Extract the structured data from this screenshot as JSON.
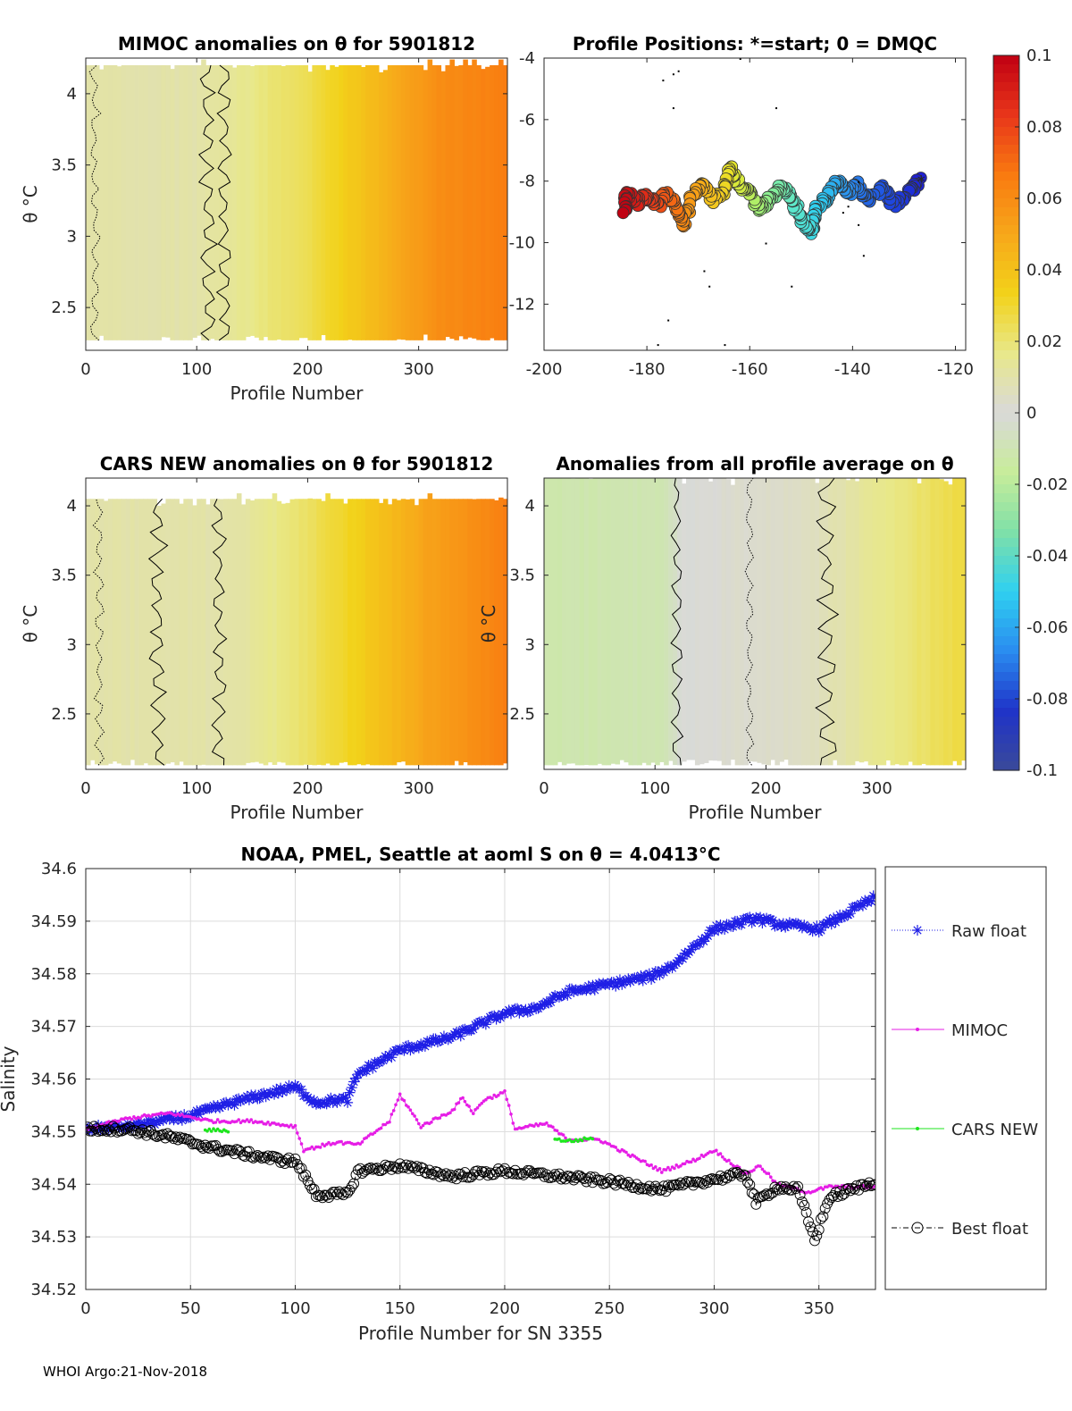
{
  "footer": "WHOI Argo:21-Nov-2018",
  "colors": {
    "raw_float": "#1f1fe6",
    "mimoc": "#e61ee6",
    "cars_new": "#1ee61e",
    "best_float": "#000000",
    "colormap": [
      "#3a4a9a",
      "#1f33c8",
      "#2a8cf0",
      "#2fd0f0",
      "#7fe0a8",
      "#c8ec9a",
      "#d9d9d9",
      "#e8e88a",
      "#f2d21a",
      "#f7a71a",
      "#f97a10",
      "#e8351a",
      "#c00012"
    ]
  },
  "chart_data": [
    {
      "id": "mimoc_anomalies",
      "type": "heatmap",
      "title": "MIMOC anomalies on θ  for 5901812",
      "xlabel": "Profile Number",
      "ylabel": "θ °C",
      "xlim": [
        0,
        380
      ],
      "ylim": [
        2.2,
        4.25
      ],
      "xticks": [
        0,
        100,
        200,
        300
      ],
      "yticks": [
        2.5,
        3,
        3.5,
        4
      ],
      "value_profile": [
        [
          0,
          0.01
        ],
        [
          100,
          0.01
        ],
        [
          140,
          0.015
        ],
        [
          200,
          0.025
        ],
        [
          250,
          0.04
        ],
        [
          320,
          0.06
        ],
        [
          380,
          0.065
        ]
      ]
    },
    {
      "id": "profile_positions",
      "type": "scatter",
      "title": "Profile Positions: *=start; 0 = DMQC",
      "xlim": [
        -200,
        -118
      ],
      "ylim": [
        -13.5,
        -4
      ],
      "xticks": [
        -200,
        -180,
        -160,
        -140,
        -120
      ],
      "yticks": [
        -4,
        -6,
        -8,
        -10,
        -12
      ],
      "track": [
        [
          -127,
          -7.9
        ],
        [
          -129,
          -8.4
        ],
        [
          -132,
          -8.8
        ],
        [
          -134,
          -8.2
        ],
        [
          -137,
          -8.6
        ],
        [
          -139,
          -8.1
        ],
        [
          -141,
          -8.4
        ],
        [
          -143,
          -8.0
        ],
        [
          -145,
          -8.5
        ],
        [
          -147,
          -8.9
        ],
        [
          -148,
          -9.7
        ],
        [
          -150,
          -9.2
        ],
        [
          -152,
          -8.5
        ],
        [
          -154,
          -8.2
        ],
        [
          -156,
          -8.6
        ],
        [
          -158,
          -8.9
        ],
        [
          -160,
          -8.4
        ],
        [
          -162,
          -8.1
        ],
        [
          -164,
          -7.5
        ],
        [
          -165,
          -8.3
        ],
        [
          -167,
          -8.6
        ],
        [
          -169,
          -8.1
        ],
        [
          -171,
          -8.4
        ],
        [
          -173,
          -9.4
        ],
        [
          -174,
          -8.9
        ],
        [
          -176,
          -8.4
        ],
        [
          -178,
          -8.8
        ],
        [
          -180,
          -8.5
        ],
        [
          -182,
          -8.7
        ],
        [
          -184,
          -8.4
        ],
        [
          -184.5,
          -9.0
        ]
      ]
    },
    {
      "id": "cars_new_anomalies",
      "type": "heatmap",
      "title": "CARS NEW anomalies on θ for 5901812",
      "xlabel": "Profile Number",
      "ylabel": "θ °C",
      "xlim": [
        0,
        380
      ],
      "ylim": [
        2.1,
        4.2
      ],
      "xticks": [
        0,
        100,
        200,
        300
      ],
      "yticks": [
        2.5,
        3,
        3.5,
        4
      ],
      "value_profile": [
        [
          0,
          0.01
        ],
        [
          130,
          0.01
        ],
        [
          180,
          0.018
        ],
        [
          230,
          0.03
        ],
        [
          300,
          0.05
        ],
        [
          380,
          0.065
        ]
      ]
    },
    {
      "id": "all_profile_average_anomalies",
      "type": "heatmap",
      "title": "Anomalies from all profile average on θ",
      "xlabel": "Profile Number",
      "ylabel": "θ °C",
      "xlim": [
        0,
        380
      ],
      "ylim": [
        2.1,
        4.2
      ],
      "xticks": [
        0,
        100,
        200,
        300
      ],
      "yticks": [
        2.5,
        3,
        3.5,
        4
      ],
      "value_profile": [
        [
          0,
          -0.012
        ],
        [
          110,
          -0.01
        ],
        [
          125,
          0.0
        ],
        [
          240,
          0.005
        ],
        [
          300,
          0.015
        ],
        [
          380,
          0.028
        ]
      ]
    },
    {
      "id": "colorbar",
      "type": "colorbar",
      "clim": [
        -0.1,
        0.1
      ],
      "ticks": [
        0.1,
        0.08,
        0.06,
        0.04,
        0.02,
        0,
        -0.02,
        -0.04,
        -0.06,
        -0.08,
        -0.1
      ],
      "tick_labels": [
        "0.1",
        "0.08",
        "0.06",
        "0.04",
        "0.02",
        "0",
        "-0.02",
        "-0.04",
        "-0.06",
        "-0.08",
        "-0.1"
      ]
    },
    {
      "id": "salinity_timeseries",
      "type": "line",
      "title": "NOAA, PMEL, Seattle at aoml S on θ = 4.0413°C",
      "xlabel": "Profile Number for SN 3355",
      "ylabel": "Salinity",
      "xlim": [
        0,
        377
      ],
      "ylim": [
        34.52,
        34.6
      ],
      "xticks": [
        0,
        50,
        100,
        150,
        200,
        250,
        300,
        350
      ],
      "yticks": [
        34.52,
        34.53,
        34.54,
        34.55,
        34.56,
        34.57,
        34.58,
        34.59,
        34.6
      ],
      "ytick_labels": [
        "34.52",
        "34.53",
        "34.54",
        "34.55",
        "34.56",
        "34.57",
        "34.58",
        "34.59",
        "34.6"
      ],
      "grid": true,
      "legend_position": "right",
      "series": [
        {
          "name": "Raw float",
          "marker": "*",
          "line": "dotted",
          "key": [
            [
              0,
              34.5505
            ],
            [
              20,
              34.551
            ],
            [
              50,
              34.553
            ],
            [
              70,
              34.5555
            ],
            [
              90,
              34.5575
            ],
            [
              100,
              34.5585
            ],
            [
              110,
              34.5555
            ],
            [
              120,
              34.556
            ],
            [
              125,
              34.556
            ],
            [
              130,
              34.561
            ],
            [
              150,
              34.5655
            ],
            [
              175,
              34.568
            ],
            [
              200,
              34.5725
            ],
            [
              215,
              34.5735
            ],
            [
              230,
              34.5765
            ],
            [
              250,
              34.578
            ],
            [
              270,
              34.5795
            ],
            [
              280,
              34.5815
            ],
            [
              300,
              34.5885
            ],
            [
              320,
              34.5905
            ],
            [
              330,
              34.5895
            ],
            [
              350,
              34.5885
            ],
            [
              377,
              34.5945
            ]
          ]
        },
        {
          "name": "MIMOC",
          "marker": ".",
          "line": "solid",
          "key": [
            [
              0,
              34.5505
            ],
            [
              20,
              34.5525
            ],
            [
              40,
              34.5535
            ],
            [
              60,
              34.552
            ],
            [
              80,
              34.552
            ],
            [
              100,
              34.551
            ],
            [
              104,
              34.5465
            ],
            [
              120,
              34.548
            ],
            [
              130,
              34.5475
            ],
            [
              145,
              34.552
            ],
            [
              150,
              34.557
            ],
            [
              160,
              34.551
            ],
            [
              175,
              34.554
            ],
            [
              180,
              34.5565
            ],
            [
              185,
              34.5535
            ],
            [
              190,
              34.556
            ],
            [
              200,
              34.5575
            ],
            [
              205,
              34.5505
            ],
            [
              220,
              34.5515
            ],
            [
              230,
              34.5485
            ],
            [
              245,
              34.5485
            ],
            [
              250,
              34.5475
            ],
            [
              265,
              34.5445
            ],
            [
              275,
              34.5425
            ],
            [
              290,
              34.5445
            ],
            [
              300,
              34.5465
            ],
            [
              315,
              34.542
            ],
            [
              322,
              34.5435
            ],
            [
              330,
              34.54
            ],
            [
              345,
              34.5385
            ],
            [
              355,
              34.5395
            ],
            [
              377,
              34.5395
            ]
          ]
        },
        {
          "name": "CARS NEW",
          "marker": ".",
          "line": "solid",
          "key": [
            [
              57,
              34.5503
            ],
            [
              68,
              34.5502
            ],
            [
              224,
              34.5485
            ],
            [
              232,
              34.5482
            ],
            [
              242,
              34.5488
            ]
          ]
        },
        {
          "name": "Best float",
          "marker": "o",
          "line": "dashdot",
          "key": [
            [
              0,
              34.5505
            ],
            [
              20,
              34.5505
            ],
            [
              40,
              34.549
            ],
            [
              60,
              34.547
            ],
            [
              80,
              34.5455
            ],
            [
              95,
              34.5445
            ],
            [
              100,
              34.5445
            ],
            [
              110,
              34.538
            ],
            [
              125,
              34.538
            ],
            [
              130,
              34.5425
            ],
            [
              150,
              34.5435
            ],
            [
              175,
              34.5415
            ],
            [
              200,
              34.5425
            ],
            [
              225,
              34.5415
            ],
            [
              250,
              34.5405
            ],
            [
              275,
              34.539
            ],
            [
              300,
              34.541
            ],
            [
              315,
              34.542
            ],
            [
              320,
              34.5365
            ],
            [
              330,
              34.5395
            ],
            [
              340,
              34.539
            ],
            [
              348,
              34.5295
            ],
            [
              355,
              34.5375
            ],
            [
              377,
              34.5405
            ]
          ]
        }
      ]
    }
  ]
}
